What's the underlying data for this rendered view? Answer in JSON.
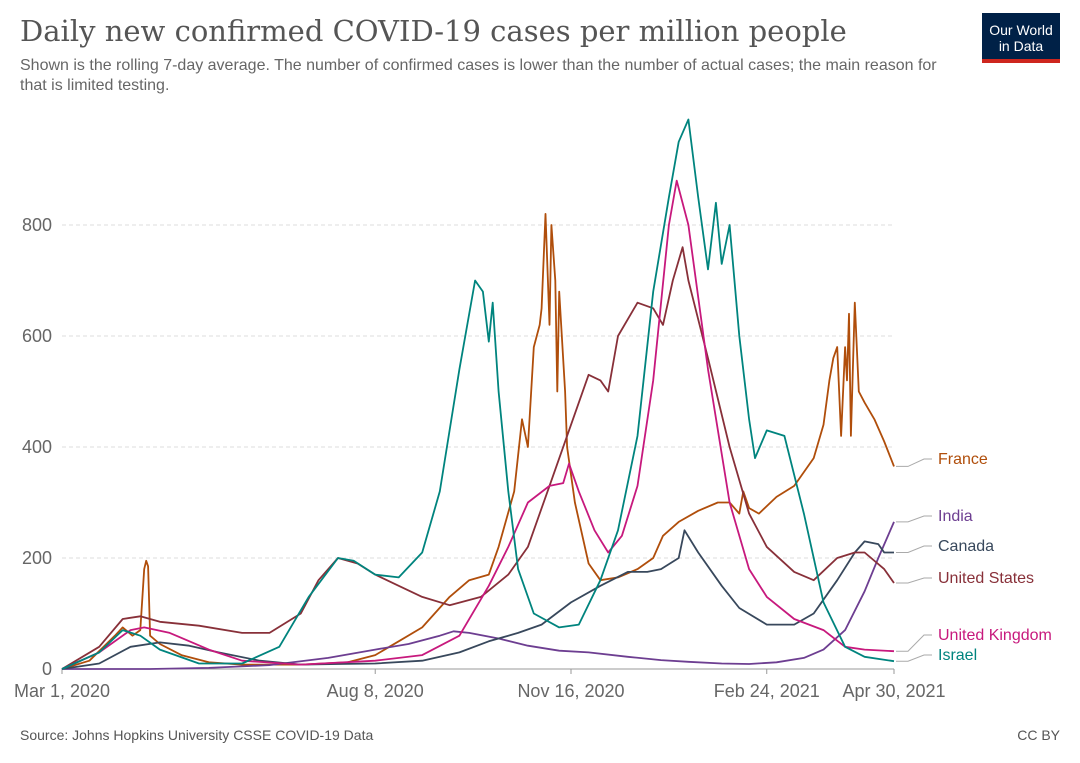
{
  "header": {
    "title": "Daily new confirmed COVID-19 cases per million people",
    "subtitle": "Shown is the rolling 7-day average. The number of confirmed cases is lower than the number of actual cases; the main reason for that is limited testing.",
    "logo_line1": "Our World",
    "logo_line2": "in Data",
    "logo_color": "#002147",
    "logo_accent": "#ce261e"
  },
  "footer": {
    "source": "Source: Johns Hopkins University CSSE COVID-19 Data",
    "license": "CC BY"
  },
  "chart_data": {
    "type": "line",
    "title": "Daily new confirmed COVID-19 cases per million people",
    "xlabel": "",
    "ylabel": "",
    "x_range": [
      "2020-03-01",
      "2021-04-30"
    ],
    "ylim": [
      0,
      1000
    ],
    "y_ticks": [
      0,
      200,
      400,
      600,
      800
    ],
    "x_ticks": [
      "2020-03-01",
      "2020-08-08",
      "2020-11-16",
      "2021-02-24",
      "2021-04-30"
    ],
    "x_tick_labels": [
      "Mar 1, 2020",
      "Aug 8, 2020",
      "Nov 16, 2020",
      "Feb 24, 2021",
      "Apr 30, 2021"
    ],
    "grid": "horizontal dashed",
    "legend": "labels at line ends (right)",
    "series": [
      {
        "name": "France",
        "color": "#b04e0b",
        "points": [
          [
            "2020-03-01",
            0
          ],
          [
            "2020-03-15",
            15
          ],
          [
            "2020-03-28",
            60
          ],
          [
            "2020-04-01",
            75
          ],
          [
            "2020-04-06",
            60
          ],
          [
            "2020-04-10",
            70
          ],
          [
            "2020-04-12",
            180
          ],
          [
            "2020-04-13",
            195
          ],
          [
            "2020-04-14",
            185
          ],
          [
            "2020-04-15",
            60
          ],
          [
            "2020-04-20",
            45
          ],
          [
            "2020-05-01",
            25
          ],
          [
            "2020-05-15",
            12
          ],
          [
            "2020-06-01",
            8
          ],
          [
            "2020-07-01",
            8
          ],
          [
            "2020-07-25",
            12
          ],
          [
            "2020-08-08",
            25
          ],
          [
            "2020-08-20",
            50
          ],
          [
            "2020-09-01",
            75
          ],
          [
            "2020-09-15",
            130
          ],
          [
            "2020-09-25",
            160
          ],
          [
            "2020-10-05",
            170
          ],
          [
            "2020-10-10",
            220
          ],
          [
            "2020-10-18",
            320
          ],
          [
            "2020-10-22",
            450
          ],
          [
            "2020-10-25",
            400
          ],
          [
            "2020-10-28",
            580
          ],
          [
            "2020-10-31",
            620
          ],
          [
            "2020-11-01",
            650
          ],
          [
            "2020-11-03",
            820
          ],
          [
            "2020-11-05",
            620
          ],
          [
            "2020-11-06",
            800
          ],
          [
            "2020-11-08",
            700
          ],
          [
            "2020-11-09",
            500
          ],
          [
            "2020-11-10",
            680
          ],
          [
            "2020-11-13",
            500
          ],
          [
            "2020-11-14",
            400
          ],
          [
            "2020-11-18",
            300
          ],
          [
            "2020-11-25",
            190
          ],
          [
            "2020-12-01",
            160
          ],
          [
            "2020-12-10",
            165
          ],
          [
            "2020-12-20",
            180
          ],
          [
            "2020-12-28",
            200
          ],
          [
            "2021-01-02",
            240
          ],
          [
            "2021-01-10",
            265
          ],
          [
            "2021-01-20",
            285
          ],
          [
            "2021-01-30",
            300
          ],
          [
            "2021-02-05",
            300
          ],
          [
            "2021-02-10",
            280
          ],
          [
            "2021-02-12",
            320
          ],
          [
            "2021-02-15",
            290
          ],
          [
            "2021-02-20",
            280
          ],
          [
            "2021-03-01",
            310
          ],
          [
            "2021-03-10",
            330
          ],
          [
            "2021-03-20",
            380
          ],
          [
            "2021-03-25",
            440
          ],
          [
            "2021-03-28",
            520
          ],
          [
            "2021-03-30",
            560
          ],
          [
            "2021-04-01",
            580
          ],
          [
            "2021-04-03",
            420
          ],
          [
            "2021-04-05",
            580
          ],
          [
            "2021-04-06",
            520
          ],
          [
            "2021-04-07",
            640
          ],
          [
            "2021-04-08",
            420
          ],
          [
            "2021-04-10",
            660
          ],
          [
            "2021-04-12",
            500
          ],
          [
            "2021-04-15",
            480
          ],
          [
            "2021-04-20",
            450
          ],
          [
            "2021-04-25",
            410
          ],
          [
            "2021-04-30",
            365
          ]
        ]
      },
      {
        "name": "India",
        "color": "#6d3e91",
        "points": [
          [
            "2020-03-01",
            0
          ],
          [
            "2020-04-15",
            0
          ],
          [
            "2020-05-15",
            2
          ],
          [
            "2020-06-15",
            7
          ],
          [
            "2020-07-15",
            20
          ],
          [
            "2020-08-08",
            35
          ],
          [
            "2020-08-25",
            45
          ],
          [
            "2020-09-10",
            60
          ],
          [
            "2020-09-17",
            68
          ],
          [
            "2020-09-25",
            65
          ],
          [
            "2020-10-10",
            55
          ],
          [
            "2020-10-25",
            42
          ],
          [
            "2020-11-10",
            33
          ],
          [
            "2020-11-25",
            30
          ],
          [
            "2020-12-15",
            22
          ],
          [
            "2021-01-01",
            16
          ],
          [
            "2021-01-15",
            13
          ],
          [
            "2021-02-01",
            10
          ],
          [
            "2021-02-15",
            9
          ],
          [
            "2021-03-01",
            12
          ],
          [
            "2021-03-15",
            20
          ],
          [
            "2021-03-25",
            35
          ],
          [
            "2021-04-05",
            70
          ],
          [
            "2021-04-15",
            140
          ],
          [
            "2021-04-22",
            200
          ],
          [
            "2021-04-30",
            265
          ]
        ]
      },
      {
        "name": "Canada",
        "color": "#38485c",
        "points": [
          [
            "2020-03-01",
            0
          ],
          [
            "2020-03-20",
            10
          ],
          [
            "2020-04-05",
            40
          ],
          [
            "2020-04-20",
            48
          ],
          [
            "2020-05-05",
            42
          ],
          [
            "2020-05-20",
            30
          ],
          [
            "2020-06-10",
            15
          ],
          [
            "2020-07-01",
            8
          ],
          [
            "2020-07-20",
            9
          ],
          [
            "2020-08-08",
            10
          ],
          [
            "2020-09-01",
            15
          ],
          [
            "2020-09-20",
            30
          ],
          [
            "2020-10-05",
            50
          ],
          [
            "2020-10-20,",
            65
          ],
          [
            "2020-11-01",
            80
          ],
          [
            "2020-11-16",
            120
          ],
          [
            "2020-12-01",
            150
          ],
          [
            "2020-12-15",
            175
          ],
          [
            "2020-12-25",
            175
          ],
          [
            "2021-01-01",
            180
          ],
          [
            "2021-01-10",
            200
          ],
          [
            "2021-01-13",
            250
          ],
          [
            "2021-01-20",
            210
          ],
          [
            "2021-02-01",
            150
          ],
          [
            "2021-02-10",
            110
          ],
          [
            "2021-02-24",
            80
          ],
          [
            "2021-03-10",
            80
          ],
          [
            "2021-03-20",
            100
          ],
          [
            "2021-04-01",
            160
          ],
          [
            "2021-04-10",
            210
          ],
          [
            "2021-04-15",
            230
          ],
          [
            "2021-04-22",
            225
          ],
          [
            "2021-04-25",
            210
          ],
          [
            "2021-04-30",
            210
          ]
        ]
      },
      {
        "name": "United States",
        "color": "#883039",
        "points": [
          [
            "2020-03-01",
            0
          ],
          [
            "2020-03-20",
            40
          ],
          [
            "2020-04-01",
            90
          ],
          [
            "2020-04-10",
            95
          ],
          [
            "2020-04-20",
            85
          ],
          [
            "2020-05-10",
            78
          ],
          [
            "2020-06-01",
            65
          ],
          [
            "2020-06-15",
            65
          ],
          [
            "2020-07-01",
            100
          ],
          [
            "2020-07-10",
            160
          ],
          [
            "2020-07-20",
            200
          ],
          [
            "2020-07-30",
            190
          ],
          [
            "2020-08-08",
            170
          ],
          [
            "2020-08-20",
            150
          ],
          [
            "2020-09-01",
            130
          ],
          [
            "2020-09-15",
            115
          ],
          [
            "2020-10-01",
            130
          ],
          [
            "2020-10-15",
            170
          ],
          [
            "2020-10-25",
            220
          ],
          [
            "2020-11-05",
            330
          ],
          [
            "2020-11-16",
            440
          ],
          [
            "2020-11-25",
            530
          ],
          [
            "2020-12-01",
            520
          ],
          [
            "2020-12-05",
            500
          ],
          [
            "2020-12-10",
            600
          ],
          [
            "2020-12-20",
            660
          ],
          [
            "2020-12-28",
            650
          ],
          [
            "2021-01-02",
            620
          ],
          [
            "2021-01-07",
            700
          ],
          [
            "2021-01-12",
            760
          ],
          [
            "2021-01-15",
            700
          ],
          [
            "2021-01-25",
            560
          ],
          [
            "2021-02-05",
            400
          ],
          [
            "2021-02-15",
            280
          ],
          [
            "2021-02-24",
            220
          ],
          [
            "2021-03-10",
            175
          ],
          [
            "2021-03-20",
            160
          ],
          [
            "2021-04-01",
            200
          ],
          [
            "2021-04-10",
            210
          ],
          [
            "2021-04-15",
            210
          ],
          [
            "2021-04-25",
            180
          ],
          [
            "2021-04-30",
            155
          ]
        ]
      },
      {
        "name": "United Kingdom",
        "color": "#c7197d",
        "points": [
          [
            "2020-03-01",
            0
          ],
          [
            "2020-03-20",
            30
          ],
          [
            "2020-04-05",
            70
          ],
          [
            "2020-04-12",
            75
          ],
          [
            "2020-04-25",
            65
          ],
          [
            "2020-05-15",
            35
          ],
          [
            "2020-06-01",
            15
          ],
          [
            "2020-07-01",
            8
          ],
          [
            "2020-08-08",
            15
          ],
          [
            "2020-09-01",
            25
          ],
          [
            "2020-09-20",
            60
          ],
          [
            "2020-10-05",
            150
          ],
          [
            "2020-10-15",
            220
          ],
          [
            "2020-10-25",
            300
          ],
          [
            "2020-11-05",
            330
          ],
          [
            "2020-11-12",
            335
          ],
          [
            "2020-11-15",
            370
          ],
          [
            "2020-11-20",
            320
          ],
          [
            "2020-11-28",
            250
          ],
          [
            "2020-12-05",
            210
          ],
          [
            "2020-12-12",
            240
          ],
          [
            "2020-12-20",
            330
          ],
          [
            "2020-12-28",
            520
          ],
          [
            "2021-01-05",
            800
          ],
          [
            "2021-01-09",
            880
          ],
          [
            "2021-01-15",
            800
          ],
          [
            "2021-01-25",
            540
          ],
          [
            "2021-02-05",
            300
          ],
          [
            "2021-02-15",
            180
          ],
          [
            "2021-02-24",
            130
          ],
          [
            "2021-03-10",
            90
          ],
          [
            "2021-03-25",
            70
          ],
          [
            "2021-04-05",
            40
          ],
          [
            "2021-04-15",
            35
          ],
          [
            "2021-04-30",
            32
          ]
        ]
      },
      {
        "name": "Israel",
        "color": "#00847e",
        "points": [
          [
            "2020-03-01",
            0
          ],
          [
            "2020-03-20",
            30
          ],
          [
            "2020-04-01",
            70
          ],
          [
            "2020-04-10",
            60
          ],
          [
            "2020-04-20",
            35
          ],
          [
            "2020-05-10",
            10
          ],
          [
            "2020-06-01",
            10
          ],
          [
            "2020-06-20",
            40
          ],
          [
            "2020-07-05",
            130
          ],
          [
            "2020-07-20",
            200
          ],
          [
            "2020-07-28",
            195
          ],
          [
            "2020-08-08",
            170
          ],
          [
            "2020-08-20",
            165
          ],
          [
            "2020-09-01",
            210
          ],
          [
            "2020-09-10",
            320
          ],
          [
            "2020-09-20",
            540
          ],
          [
            "2020-09-28",
            700
          ],
          [
            "2020-10-02",
            680
          ],
          [
            "2020-10-05",
            590
          ],
          [
            "2020-10-07",
            660
          ],
          [
            "2020-10-10",
            500
          ],
          [
            "2020-10-15",
            320
          ],
          [
            "2020-10-20",
            180
          ],
          [
            "2020-10-28",
            100
          ],
          [
            "2020-11-10",
            75
          ],
          [
            "2020-11-20",
            80
          ],
          [
            "2020-12-01",
            160
          ],
          [
            "2020-12-10",
            250
          ],
          [
            "2020-12-20",
            420
          ],
          [
            "2020-12-28",
            680
          ],
          [
            "2021-01-05",
            850
          ],
          [
            "2021-01-10",
            950
          ],
          [
            "2021-01-15",
            990
          ],
          [
            "2021-01-20",
            850
          ],
          [
            "2021-01-25",
            720
          ],
          [
            "2021-01-29",
            840
          ],
          [
            "2021-02-01",
            730
          ],
          [
            "2021-02-05",
            800
          ],
          [
            "2021-02-10",
            600
          ],
          [
            "2021-02-15",
            450
          ],
          [
            "2021-02-18",
            380
          ],
          [
            "2021-02-24",
            430
          ],
          [
            "2021-03-05",
            420
          ],
          [
            "2021-03-15",
            280
          ],
          [
            "2021-03-25",
            120
          ],
          [
            "2021-04-05",
            40
          ],
          [
            "2021-04-15",
            22
          ],
          [
            "2021-04-30",
            14
          ]
        ]
      }
    ]
  }
}
